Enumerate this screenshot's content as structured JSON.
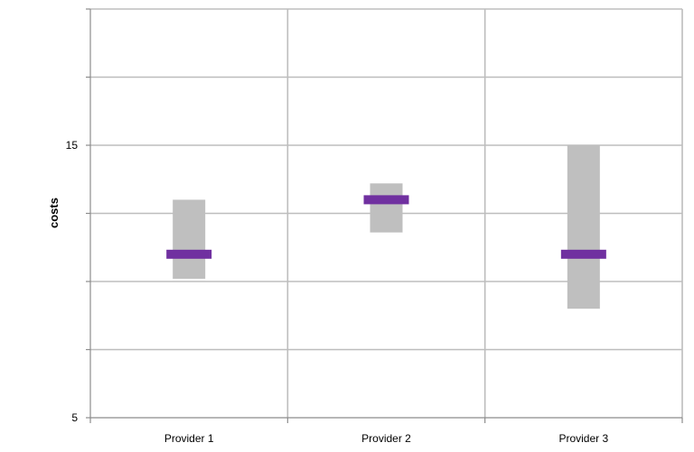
{
  "chart_data": {
    "type": "bar",
    "title": "",
    "xlabel": "",
    "ylabel": "costs",
    "ylim": [
      5,
      20
    ],
    "y_tick_labels": [
      "5",
      "15"
    ],
    "y_tick_values": [
      5,
      15
    ],
    "grid": true,
    "categories": [
      "Provider 1",
      "Provider 2",
      "Provider 3"
    ],
    "series": [
      {
        "type": "range",
        "low": [
          10.1,
          11.8,
          9.0
        ],
        "high": [
          13.0,
          13.6,
          15.0
        ],
        "color": "#bfbfbf"
      },
      {
        "type": "marker",
        "values": [
          11.0,
          13.0,
          11.0
        ],
        "color": "#7030a0"
      }
    ]
  }
}
